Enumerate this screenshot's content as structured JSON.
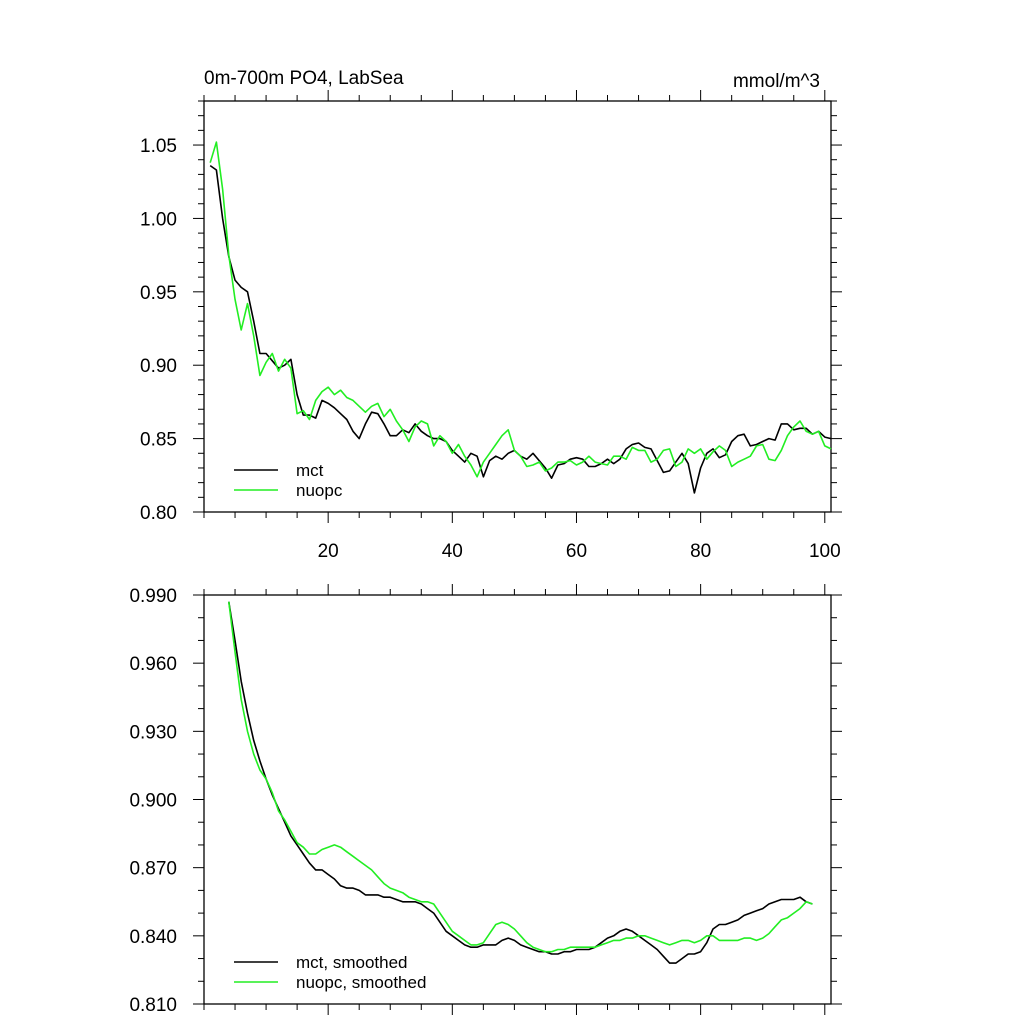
{
  "chart_data": [
    {
      "type": "line",
      "title": "0m-700m PO4, LabSea",
      "units_label": "mmol/m^3",
      "xlabel": "",
      "ylabel": "",
      "xlim": [
        0,
        101
      ],
      "ylim": [
        0.8,
        1.08
      ],
      "x_ticks": [
        20,
        40,
        60,
        80,
        100
      ],
      "x_tick_labels": [
        "20",
        "40",
        "60",
        "80",
        "100"
      ],
      "y_ticks": [
        0.8,
        0.85,
        0.9,
        0.95,
        1.0,
        1.05
      ],
      "y_tick_labels": [
        "0.80",
        "0.85",
        "0.90",
        "0.95",
        "1.00",
        "1.05"
      ],
      "grid": false,
      "legend_position": "bottom-left",
      "x": [
        1,
        2,
        3,
        4,
        5,
        6,
        7,
        8,
        9,
        10,
        11,
        12,
        13,
        14,
        15,
        16,
        17,
        18,
        19,
        20,
        21,
        22,
        23,
        24,
        25,
        26,
        27,
        28,
        29,
        30,
        31,
        32,
        33,
        34,
        35,
        36,
        37,
        38,
        39,
        40,
        41,
        42,
        43,
        44,
        45,
        46,
        47,
        48,
        49,
        50,
        51,
        52,
        53,
        54,
        55,
        56,
        57,
        58,
        59,
        60,
        61,
        62,
        63,
        64,
        65,
        66,
        67,
        68,
        69,
        70,
        71,
        72,
        73,
        74,
        75,
        76,
        77,
        78,
        79,
        80,
        81,
        82,
        83,
        84,
        85,
        86,
        87,
        88,
        89,
        90,
        91,
        92,
        93,
        94,
        95,
        96,
        97,
        98,
        99,
        100,
        101
      ],
      "series": [
        {
          "name": "mct",
          "color": "#000000",
          "values": [
            1.036,
            1.033,
            1.0,
            0.974,
            0.958,
            0.953,
            0.95,
            0.93,
            0.908,
            0.908,
            0.903,
            0.898,
            0.9,
            0.904,
            0.88,
            0.866,
            0.866,
            0.864,
            0.876,
            0.874,
            0.871,
            0.867,
            0.863,
            0.855,
            0.85,
            0.86,
            0.868,
            0.867,
            0.86,
            0.852,
            0.852,
            0.856,
            0.854,
            0.86,
            0.855,
            0.852,
            0.85,
            0.85,
            0.848,
            0.842,
            0.838,
            0.834,
            0.84,
            0.838,
            0.824,
            0.835,
            0.838,
            0.836,
            0.84,
            0.842,
            0.838,
            0.836,
            0.84,
            0.835,
            0.83,
            0.823,
            0.832,
            0.833,
            0.836,
            0.837,
            0.836,
            0.831,
            0.831,
            0.833,
            0.836,
            0.833,
            0.836,
            0.843,
            0.846,
            0.847,
            0.844,
            0.843,
            0.835,
            0.827,
            0.828,
            0.834,
            0.84,
            0.833,
            0.813,
            0.83,
            0.84,
            0.843,
            0.837,
            0.839,
            0.848,
            0.852,
            0.853,
            0.845,
            0.846,
            0.848,
            0.85,
            0.849,
            0.86,
            0.86,
            0.856,
            0.857,
            0.857,
            0.853,
            0.855,
            0.851,
            0.85
          ]
        },
        {
          "name": "nuopc",
          "color": "#22ee22",
          "values": [
            1.038,
            1.052,
            1.02,
            0.975,
            0.945,
            0.924,
            0.942,
            0.92,
            0.893,
            0.902,
            0.908,
            0.896,
            0.904,
            0.898,
            0.867,
            0.869,
            0.863,
            0.876,
            0.882,
            0.885,
            0.88,
            0.883,
            0.878,
            0.876,
            0.872,
            0.868,
            0.872,
            0.874,
            0.865,
            0.87,
            0.862,
            0.856,
            0.848,
            0.858,
            0.862,
            0.86,
            0.845,
            0.852,
            0.848,
            0.84,
            0.846,
            0.838,
            0.832,
            0.824,
            0.834,
            0.84,
            0.846,
            0.852,
            0.856,
            0.842,
            0.838,
            0.831,
            0.832,
            0.834,
            0.828,
            0.83,
            0.834,
            0.834,
            0.835,
            0.832,
            0.834,
            0.838,
            0.834,
            0.833,
            0.832,
            0.838,
            0.838,
            0.836,
            0.844,
            0.842,
            0.842,
            0.834,
            0.836,
            0.842,
            0.843,
            0.831,
            0.834,
            0.843,
            0.84,
            0.843,
            0.836,
            0.841,
            0.845,
            0.842,
            0.831,
            0.834,
            0.836,
            0.838,
            0.845,
            0.846,
            0.836,
            0.835,
            0.842,
            0.852,
            0.858,
            0.862,
            0.855,
            0.853,
            0.855,
            0.845,
            0.843
          ]
        }
      ]
    },
    {
      "type": "line",
      "title": "",
      "xlabel": "",
      "ylabel": "",
      "xlim": [
        0,
        101
      ],
      "ylim": [
        0.81,
        0.99
      ],
      "x_ticks": [
        20,
        40,
        60,
        80,
        100
      ],
      "x_tick_labels": [],
      "y_ticks": [
        0.81,
        0.84,
        0.87,
        0.9,
        0.93,
        0.96,
        0.99
      ],
      "y_tick_labels": [
        "0.810",
        "0.840",
        "0.870",
        "0.900",
        "0.930",
        "0.960",
        "0.990"
      ],
      "grid": false,
      "legend_position": "bottom-left",
      "x": [
        4,
        5,
        6,
        7,
        8,
        9,
        10,
        11,
        12,
        13,
        14,
        15,
        16,
        17,
        18,
        19,
        20,
        21,
        22,
        23,
        24,
        25,
        26,
        27,
        28,
        29,
        30,
        31,
        32,
        33,
        34,
        35,
        36,
        37,
        38,
        39,
        40,
        41,
        42,
        43,
        44,
        45,
        46,
        47,
        48,
        49,
        50,
        51,
        52,
        53,
        54,
        55,
        56,
        57,
        58,
        59,
        60,
        61,
        62,
        63,
        64,
        65,
        66,
        67,
        68,
        69,
        70,
        71,
        72,
        73,
        74,
        75,
        76,
        77,
        78,
        79,
        80,
        81,
        82,
        83,
        84,
        85,
        86,
        87,
        88,
        89,
        90,
        91,
        92,
        93,
        94,
        95,
        96,
        97,
        98
      ],
      "series": [
        {
          "name": "mct, smoothed",
          "color": "#000000",
          "values": [
            0.987,
            0.97,
            0.952,
            0.938,
            0.926,
            0.917,
            0.909,
            0.902,
            0.896,
            0.89,
            0.884,
            0.88,
            0.876,
            0.872,
            0.869,
            0.869,
            0.867,
            0.865,
            0.862,
            0.861,
            0.861,
            0.86,
            0.858,
            0.858,
            0.858,
            0.857,
            0.857,
            0.856,
            0.855,
            0.855,
            0.855,
            0.854,
            0.852,
            0.85,
            0.846,
            0.842,
            0.84,
            0.838,
            0.836,
            0.835,
            0.835,
            0.836,
            0.836,
            0.836,
            0.838,
            0.839,
            0.838,
            0.836,
            0.835,
            0.834,
            0.833,
            0.833,
            0.832,
            0.832,
            0.833,
            0.833,
            0.834,
            0.834,
            0.834,
            0.835,
            0.837,
            0.839,
            0.84,
            0.842,
            0.843,
            0.842,
            0.84,
            0.838,
            0.836,
            0.834,
            0.831,
            0.828,
            0.828,
            0.83,
            0.832,
            0.832,
            0.833,
            0.837,
            0.843,
            0.845,
            0.845,
            0.846,
            0.847,
            0.849,
            0.85,
            0.851,
            0.852,
            0.854,
            0.855,
            0.856,
            0.856,
            0.856,
            0.857,
            0.855,
            0.854
          ]
        },
        {
          "name": "nuopc, smoothed",
          "color": "#22ee22",
          "values": [
            0.987,
            0.965,
            0.944,
            0.93,
            0.92,
            0.913,
            0.909,
            0.903,
            0.895,
            0.891,
            0.886,
            0.881,
            0.879,
            0.876,
            0.876,
            0.878,
            0.879,
            0.88,
            0.879,
            0.877,
            0.875,
            0.873,
            0.871,
            0.869,
            0.866,
            0.863,
            0.861,
            0.86,
            0.859,
            0.857,
            0.856,
            0.855,
            0.855,
            0.854,
            0.85,
            0.846,
            0.842,
            0.84,
            0.838,
            0.836,
            0.836,
            0.837,
            0.841,
            0.845,
            0.846,
            0.845,
            0.843,
            0.84,
            0.837,
            0.835,
            0.834,
            0.833,
            0.833,
            0.834,
            0.834,
            0.835,
            0.835,
            0.835,
            0.835,
            0.835,
            0.836,
            0.837,
            0.838,
            0.838,
            0.839,
            0.839,
            0.84,
            0.84,
            0.839,
            0.838,
            0.837,
            0.836,
            0.837,
            0.838,
            0.838,
            0.837,
            0.838,
            0.84,
            0.84,
            0.838,
            0.838,
            0.838,
            0.838,
            0.839,
            0.839,
            0.838,
            0.839,
            0.841,
            0.844,
            0.847,
            0.848,
            0.85,
            0.852,
            0.855,
            0.854
          ]
        }
      ]
    }
  ]
}
